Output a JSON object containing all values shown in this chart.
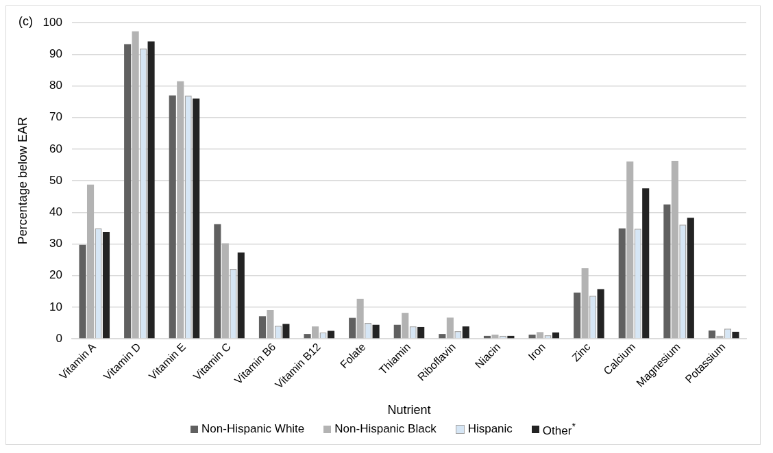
{
  "chart_data": {
    "type": "bar",
    "xlabel": "Nutrient",
    "ylabel": "Percentage below EAR",
    "annotations": [
      "(c)"
    ],
    "categories": [
      "Vitamin A",
      "Vitamin D",
      "Vitamin E",
      "Vitamin C",
      "Vitamin B6",
      "Vitamin B12",
      "Folate",
      "Thiamin",
      "Riboflavin",
      "Niacin",
      "Iron",
      "Zinc",
      "Calcium",
      "Magnesium",
      "Potassium"
    ],
    "series": [
      {
        "name": "Non-Hispanic White",
        "color": "#606060",
        "values": [
          29.7,
          93.2,
          77,
          36.3,
          7.1,
          1.5,
          6.6,
          4.4,
          1.5,
          0.9,
          1.3,
          14.6,
          34.9,
          42.5,
          2.6
        ]
      },
      {
        "name": "Non-Hispanic Black",
        "color": "#b3b3b3",
        "values": [
          48.8,
          97.3,
          81.5,
          30.2,
          9.1,
          3.9,
          12.6,
          8.2,
          6.7,
          1.3,
          2.1,
          22.3,
          56.1,
          56.3,
          0.9
        ]
      },
      {
        "name": "Hispanic",
        "color": "#d6e6f5",
        "values": [
          35,
          91.8,
          77,
          22.1,
          4.1,
          2,
          5,
          3.9,
          2.4,
          0.9,
          1.1,
          13.6,
          34.8,
          36.1,
          3.2
        ]
      },
      {
        "name": "Other$^{*}$",
        "color": "#232323",
        "values": [
          33.8,
          94.1,
          76,
          27.3,
          4.7,
          2.5,
          4.4,
          3.7,
          3.9,
          0.9,
          2,
          15.7,
          47.6,
          38.3,
          2.2
        ]
      }
    ],
    "ylim": [
      0,
      100
    ],
    "yticks": [
      0,
      10,
      20,
      30,
      40,
      50,
      60,
      70,
      80,
      90,
      100
    ],
    "grid": "y",
    "legend": "bottom"
  }
}
